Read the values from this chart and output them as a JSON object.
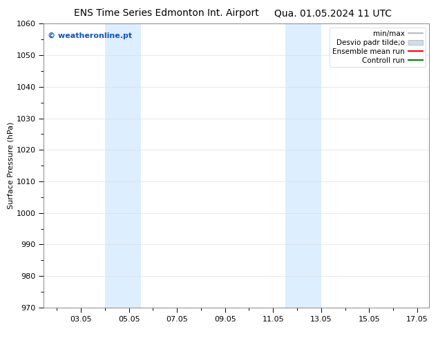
{
  "title_left": "ENS Time Series Edmonton Int. Airport",
  "title_right": "Qua. 01.05.2024 11 UTC",
  "ylabel": "Surface Pressure (hPa)",
  "ylim": [
    970,
    1060
  ],
  "yticks": [
    970,
    980,
    990,
    1000,
    1010,
    1020,
    1030,
    1040,
    1050,
    1060
  ],
  "xtick_labels": [
    "03.05",
    "05.05",
    "07.05",
    "09.05",
    "11.05",
    "13.05",
    "15.05",
    "17.05"
  ],
  "xtick_days": [
    3,
    5,
    7,
    9,
    11,
    13,
    15,
    17
  ],
  "xlim_days": [
    1.458,
    17.5
  ],
  "shaded_bands": [
    {
      "x0_day": 4.0,
      "x1_day": 5.5,
      "color": "#ddeeff"
    },
    {
      "x0_day": 11.5,
      "x1_day": 13.0,
      "color": "#ddeeff"
    }
  ],
  "watermark": "© weatheronline.pt",
  "watermark_color": "#1155bb",
  "legend_entries": [
    {
      "label": "min/max",
      "color": "#aaaaaa",
      "lw": 1.2,
      "style": "-",
      "type": "line"
    },
    {
      "label": "Desvio padr tilde;o",
      "color": "#ccddee",
      "lw": 8,
      "style": "-",
      "type": "patch"
    },
    {
      "label": "Ensemble mean run",
      "color": "red",
      "lw": 1.5,
      "style": "-",
      "type": "line"
    },
    {
      "label": "Controll run",
      "color": "green",
      "lw": 1.5,
      "style": "-",
      "type": "line"
    }
  ],
  "background_color": "#ffffff",
  "plot_bg_color": "#ffffff",
  "title_fontsize": 10,
  "label_fontsize": 8,
  "tick_fontsize": 8,
  "legend_fontsize": 7.5,
  "watermark_fontsize": 8
}
